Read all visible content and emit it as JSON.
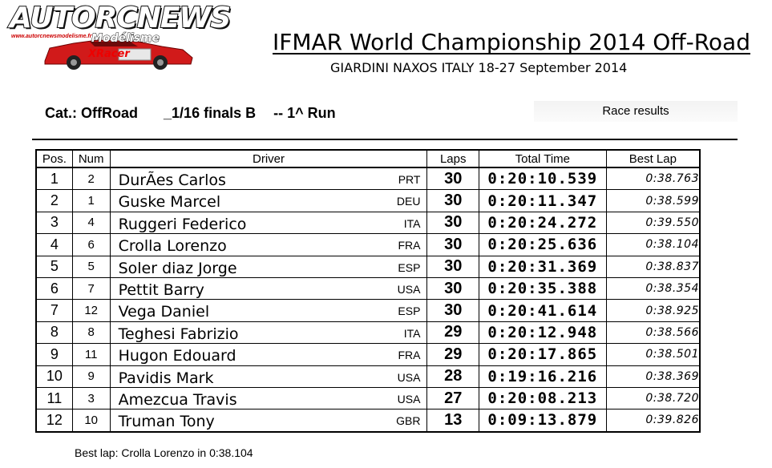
{
  "logo": {
    "title": "AUTORCNEWS",
    "url": "www.autorcnewsmodelisme.fr",
    "subtitle": "Modélisme",
    "badge": "XRacer"
  },
  "header": {
    "title": "IFMAR World Championship 2014 Off-Road",
    "subtitle": "GIARDINI NAXOS ITALY 18-27 September 2014",
    "category": "Cat.: OffRoad",
    "final": "_1/16 finals B",
    "run": "-- 1^ Run",
    "race_results": "Race results"
  },
  "table": {
    "headers": [
      "Pos.",
      "Num",
      "Driver",
      "Laps",
      "Total Time",
      "Best Lap"
    ],
    "rows": [
      {
        "pos": "1",
        "num": "2",
        "driver": "DurÃes Carlos",
        "nat": "PRT",
        "laps": "30",
        "time": "0:20:10.539",
        "best": "0:38.763"
      },
      {
        "pos": "2",
        "num": "1",
        "driver": "Guske Marcel",
        "nat": "DEU",
        "laps": "30",
        "time": "0:20:11.347",
        "best": "0:38.599"
      },
      {
        "pos": "3",
        "num": "4",
        "driver": "Ruggeri Federico",
        "nat": "ITA",
        "laps": "30",
        "time": "0:20:24.272",
        "best": "0:39.550"
      },
      {
        "pos": "4",
        "num": "6",
        "driver": "Crolla Lorenzo",
        "nat": "FRA",
        "laps": "30",
        "time": "0:20:25.636",
        "best": "0:38.104"
      },
      {
        "pos": "5",
        "num": "5",
        "driver": "Soler diaz Jorge",
        "nat": "ESP",
        "laps": "30",
        "time": "0:20:31.369",
        "best": "0:38.837"
      },
      {
        "pos": "6",
        "num": "7",
        "driver": "Pettit Barry",
        "nat": "USA",
        "laps": "30",
        "time": "0:20:35.388",
        "best": "0:38.354"
      },
      {
        "pos": "7",
        "num": "12",
        "driver": "Vega Daniel",
        "nat": "ESP",
        "laps": "30",
        "time": "0:20:41.614",
        "best": "0:38.925"
      },
      {
        "pos": "8",
        "num": "8",
        "driver": "Teghesi Fabrizio",
        "nat": "ITA",
        "laps": "29",
        "time": "0:20:12.948",
        "best": "0:38.566"
      },
      {
        "pos": "9",
        "num": "11",
        "driver": "Hugon Edouard",
        "nat": "FRA",
        "laps": "29",
        "time": "0:20:17.865",
        "best": "0:38.501"
      },
      {
        "pos": "10",
        "num": "9",
        "driver": "Pavidis Mark",
        "nat": "USA",
        "laps": "28",
        "time": "0:19:16.216",
        "best": "0:38.369"
      },
      {
        "pos": "11",
        "num": "3",
        "driver": "Amezcua Travis",
        "nat": "USA",
        "laps": "27",
        "time": "0:20:08.213",
        "best": "0:38.720"
      },
      {
        "pos": "12",
        "num": "10",
        "driver": "Truman Tony",
        "nat": "GBR",
        "laps": "13",
        "time": "0:09:13.879",
        "best": "0:39.826"
      }
    ]
  },
  "footer": {
    "best_lap": "Best lap:  Crolla Lorenzo in 0:38.104"
  },
  "colors": {
    "car": "#d11a1a",
    "logo_red": "#cc0000"
  }
}
